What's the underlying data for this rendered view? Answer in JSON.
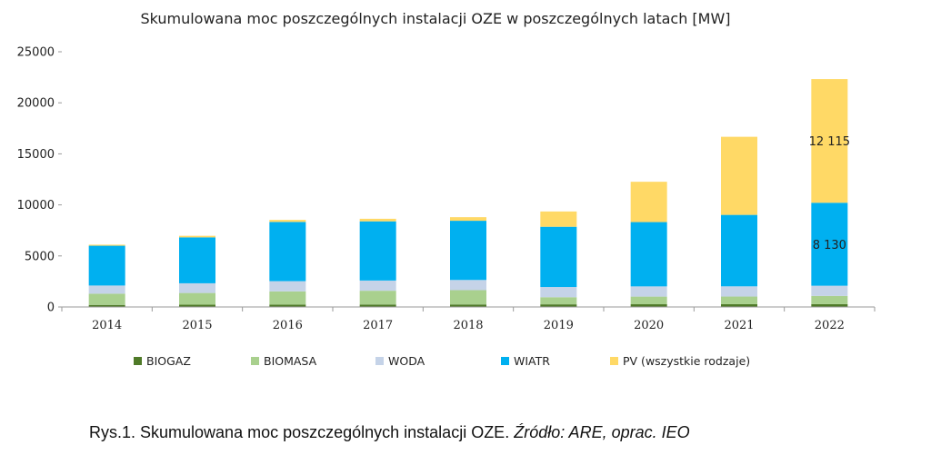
{
  "chart_data": {
    "type": "bar",
    "stacked": true,
    "title": "Skumulowana moc poszczególnych instalacji OZE w poszczególnych latach [MW]",
    "xlabel": "",
    "ylabel": "",
    "ylim": [
      0,
      25000
    ],
    "yticks": [
      0,
      5000,
      10000,
      15000,
      20000,
      25000
    ],
    "grid": false,
    "legend": "bottom",
    "categories": [
      "2014",
      "2015",
      "2016",
      "2017",
      "2018",
      "2019",
      "2020",
      "2021",
      "2022"
    ],
    "series": [
      {
        "name": "BIOGAZ",
        "color": "#4f7a28",
        "values": [
          200,
          220,
          230,
          240,
          245,
          255,
          265,
          270,
          280
        ]
      },
      {
        "name": "BIOMASA",
        "color": "#a9d08e",
        "values": [
          1100,
          1150,
          1300,
          1350,
          1400,
          700,
          750,
          750,
          800
        ]
      },
      {
        "name": "WODA",
        "color": "#c5d3e8",
        "values": [
          800,
          950,
          1000,
          1000,
          1000,
          1000,
          1000,
          1000,
          1000
        ]
      },
      {
        "name": "WIATR",
        "color": "#00b0f0",
        "values": [
          3900,
          4500,
          5800,
          5800,
          5800,
          5900,
          6300,
          7000,
          8130
        ]
      },
      {
        "name": "PV (wszystkie rodzaje)",
        "color": "#ffd966",
        "values": [
          100,
          150,
          200,
          250,
          350,
          1500,
          3950,
          7650,
          12115
        ]
      }
    ],
    "data_labels": [
      {
        "category": "2022",
        "series": "PV (wszystkie rodzaje)",
        "text": "12 115"
      },
      {
        "category": "2022",
        "series": "WIATR",
        "text": "8 130"
      }
    ]
  },
  "caption": {
    "main": "Rys.1. Skumulowana moc poszczególnych instalacji OZE. ",
    "source": "Źródło: ARE, oprac. IEO"
  }
}
